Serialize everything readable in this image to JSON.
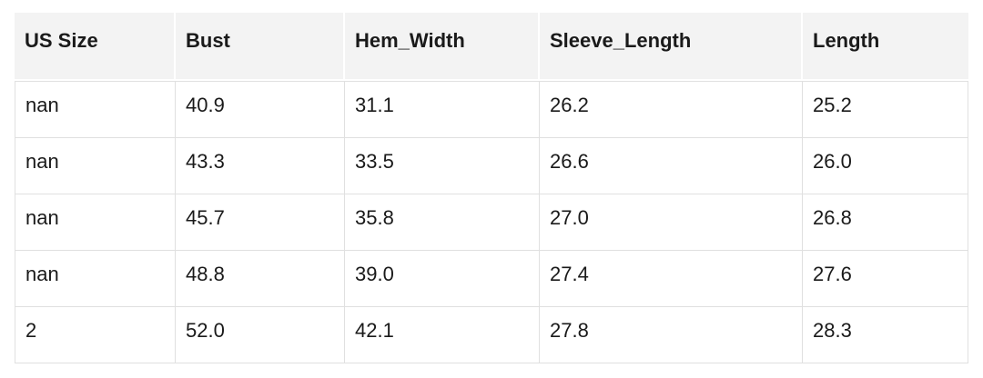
{
  "table": {
    "columns": [
      "US Size",
      "Bust",
      "Hem_Width",
      "Sleeve_Length",
      "Length"
    ],
    "rows": [
      [
        "nan",
        "40.9",
        "31.1",
        "26.2",
        "25.2"
      ],
      [
        "nan",
        "43.3",
        "33.5",
        "26.6",
        "26.0"
      ],
      [
        "nan",
        "45.7",
        "35.8",
        "27.0",
        "26.8"
      ],
      [
        "nan",
        "48.8",
        "39.0",
        "27.4",
        "27.6"
      ],
      [
        "2",
        "52.0",
        "42.1",
        "27.8",
        "28.3"
      ]
    ]
  },
  "colors": {
    "header_background": "#f3f3f3",
    "grid_border": "#e0e0e0",
    "text": "#1a1a1a",
    "page_background": "#ffffff"
  }
}
